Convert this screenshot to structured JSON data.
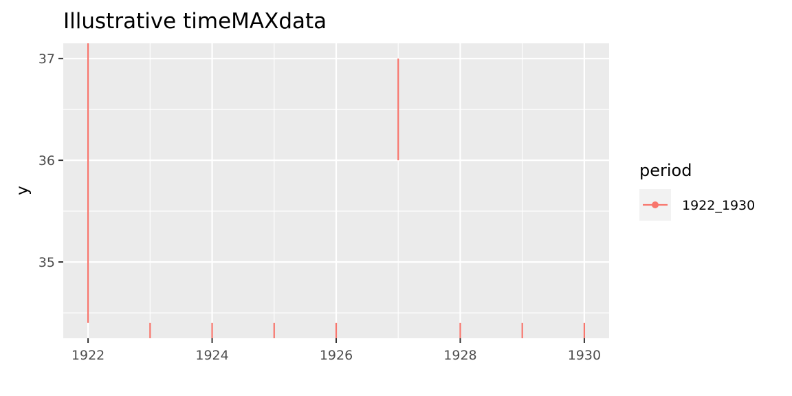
{
  "chart_data": {
    "type": "line",
    "title": "Illustrative timeMAXdata",
    "xlabel": "",
    "ylabel": "y",
    "xlim": [
      1921.6,
      1930.4
    ],
    "ylim": [
      34.25,
      37.15
    ],
    "x_ticks": [
      1922,
      1924,
      1926,
      1928,
      1930
    ],
    "x_minor_ticks": [
      1923,
      1925,
      1927,
      1929
    ],
    "y_ticks": [
      35,
      36,
      37
    ],
    "y_minor_ticks": [
      34.5,
      35.5,
      36.5
    ],
    "grid": true,
    "legend": {
      "title": "period",
      "position": "right",
      "entries": [
        {
          "label": "1922_1930",
          "color": "#F8766D"
        }
      ]
    },
    "series": [
      {
        "name": "1922_1930",
        "color": "#F8766D",
        "segments": [
          {
            "x": 1922,
            "y0": 34.4,
            "y1": 37.15
          },
          {
            "x": 1923,
            "y0": 34.25,
            "y1": 34.4
          },
          {
            "x": 1924,
            "y0": 34.25,
            "y1": 34.4
          },
          {
            "x": 1925,
            "y0": 34.25,
            "y1": 34.4
          },
          {
            "x": 1926,
            "y0": 34.25,
            "y1": 34.4
          },
          {
            "x": 1927,
            "y0": 36.0,
            "y1": 37.0
          },
          {
            "x": 1928,
            "y0": 34.25,
            "y1": 34.4
          },
          {
            "x": 1929,
            "y0": 34.25,
            "y1": 34.4
          },
          {
            "x": 1930,
            "y0": 34.25,
            "y1": 34.4
          }
        ]
      }
    ]
  }
}
